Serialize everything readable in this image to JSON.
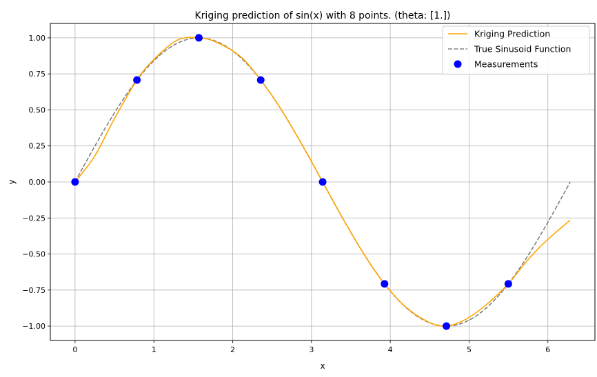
{
  "chart_data": {
    "type": "line",
    "title": "Kriging prediction of sin(x) with 8 points. (theta: [1.])",
    "xlabel": "x",
    "ylabel": "y",
    "xlim": [
      -0.314,
      6.597
    ],
    "ylim": [
      -1.1,
      1.1
    ],
    "xticks": [
      0,
      1,
      2,
      3,
      4,
      5,
      6
    ],
    "yticks": [
      -1.0,
      -0.75,
      -0.5,
      -0.25,
      0.0,
      0.25,
      0.5,
      0.75,
      1.0
    ],
    "xtick_labels": [
      "0",
      "1",
      "2",
      "3",
      "4",
      "5",
      "6"
    ],
    "ytick_labels": [
      "−1.00",
      "−0.75",
      "−0.50",
      "−0.25",
      "0.00",
      "0.25",
      "0.50",
      "0.75",
      "1.00"
    ],
    "grid": true,
    "legend_position": "top-right",
    "series": [
      {
        "name": "Kriging Prediction",
        "color": "#ffa500",
        "style": "solid",
        "x": [
          0.0,
          0.25,
          0.5,
          0.785,
          1.0,
          1.3,
          1.571,
          1.8,
          2.1,
          2.356,
          2.6,
          2.9,
          3.142,
          3.4,
          3.7,
          3.927,
          4.2,
          4.5,
          4.712,
          4.95,
          5.2,
          5.498,
          5.7,
          5.9,
          6.1,
          6.283
        ],
        "y": [
          0.0,
          0.18,
          0.44,
          0.707,
          0.85,
          0.985,
          1.0,
          0.968,
          0.87,
          0.707,
          0.516,
          0.24,
          0.0,
          -0.256,
          -0.53,
          -0.707,
          -0.87,
          -0.976,
          -1.0,
          -0.955,
          -0.86,
          -0.707,
          -0.57,
          -0.45,
          -0.35,
          -0.265
        ]
      },
      {
        "name": "True Sinusoid Function",
        "color": "#808080",
        "style": "dashed",
        "function": "sin",
        "x_range": [
          0,
          6.283
        ]
      },
      {
        "name": "Measurements",
        "color": "#0000ff",
        "style": "markers",
        "x": [
          0.0,
          0.785,
          1.571,
          2.356,
          3.142,
          3.927,
          4.712,
          5.498
        ],
        "y": [
          0.0,
          0.707,
          1.0,
          0.707,
          0.0,
          -0.707,
          -1.0,
          -0.707
        ]
      }
    ]
  }
}
